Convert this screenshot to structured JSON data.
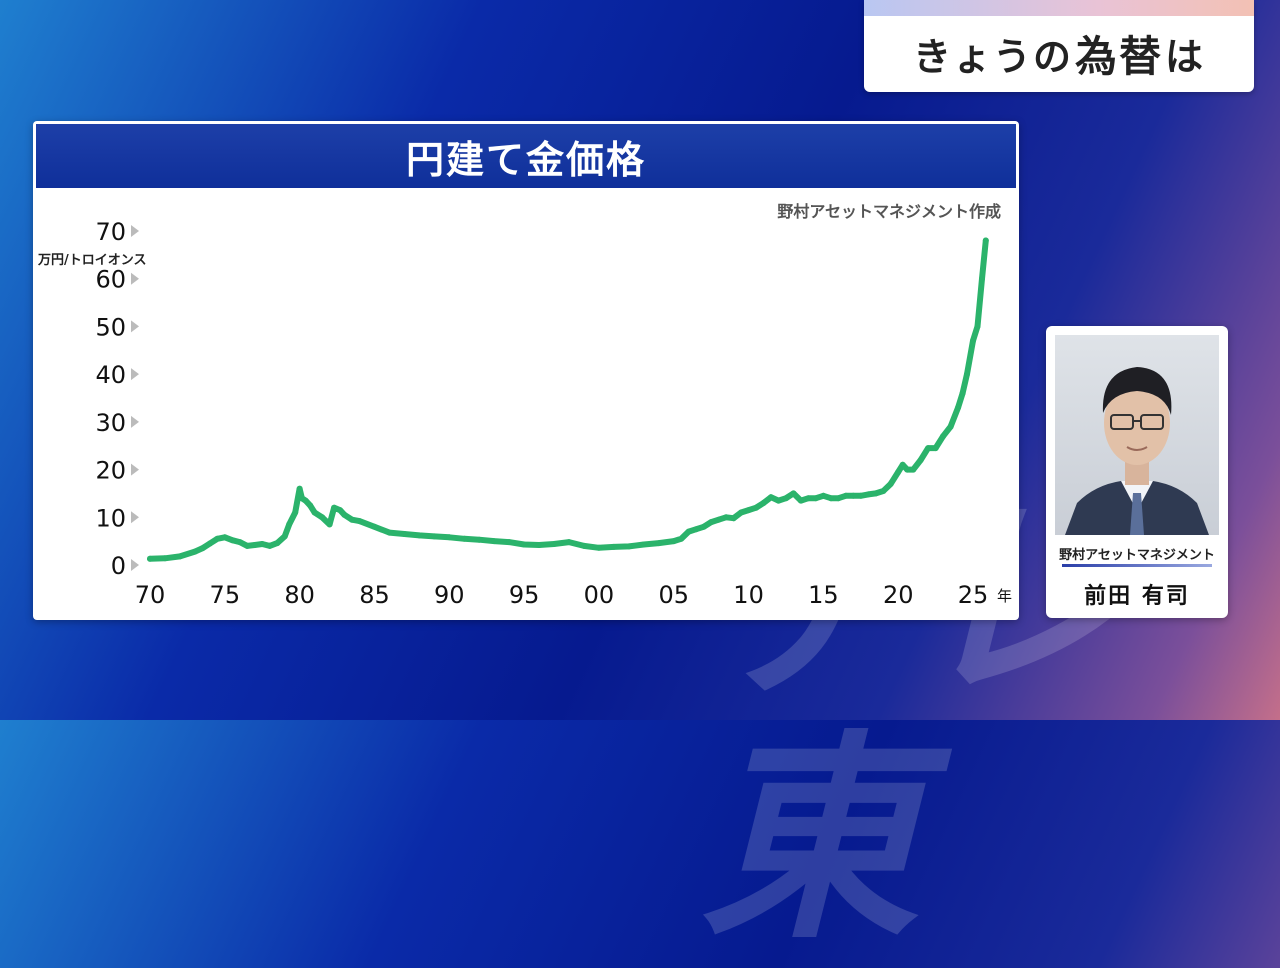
{
  "watermark": "テレ東",
  "topic": {
    "pre": "きょうの",
    "em": "為替",
    "post": "は"
  },
  "chart": {
    "title": "円建て金価格",
    "source": "野村アセットマネジメント作成",
    "unit": "万円/トロイオンス",
    "year_suffix": "年"
  },
  "guest": {
    "company": "野村アセットマネジメント",
    "name": "前田 有司"
  },
  "colors": {
    "line": "#2bb36b",
    "title_bg": "#0f2f9a",
    "arrow": "#bbbbbb"
  },
  "chart_data": {
    "type": "line",
    "title": "円建て金価格",
    "ylabel": "万円/トロイオンス",
    "xlabel": "",
    "x_ticks": [
      "70",
      "75",
      "80",
      "85",
      "90",
      "95",
      "00",
      "05",
      "10",
      "15",
      "20",
      "25"
    ],
    "y_ticks": [
      0,
      10,
      20,
      30,
      40,
      50,
      60,
      70
    ],
    "xlim": [
      1970,
      2026
    ],
    "ylim": [
      0,
      70
    ],
    "grid": false,
    "series": [
      {
        "x": [
          1970,
          1971,
          1972,
          1973,
          1973.5,
          1974,
          1974.5,
          1975,
          1975.5,
          1976,
          1976.5,
          1977,
          1977.5,
          1978,
          1978.5,
          1979,
          1979.3,
          1979.7,
          1980,
          1980.15,
          1980.4,
          1980.7,
          1981,
          1981.5,
          1982,
          1982.3,
          1982.7,
          1983,
          1983.5,
          1984,
          1985,
          1986,
          1987,
          1988,
          1989,
          1990,
          1991,
          1992,
          1993,
          1994,
          1995,
          1996,
          1997,
          1998,
          1999,
          2000,
          2001,
          2002,
          2003,
          2004,
          2005,
          2005.5,
          2006,
          2006.5,
          2007,
          2007.5,
          2008,
          2008.5,
          2009,
          2009.5,
          2010,
          2010.5,
          2011,
          2011.5,
          2012,
          2012.5,
          2013,
          2013.5,
          2014,
          2014.5,
          2015,
          2015.5,
          2016,
          2016.5,
          2017,
          2017.5,
          2018,
          2018.5,
          2019,
          2019.5,
          2020,
          2020.3,
          2020.6,
          2021,
          2021.5,
          2022,
          2022.5,
          2023,
          2023.5,
          2024,
          2024.3,
          2024.6,
          2025,
          2025.3,
          2025.6,
          2025.85
        ],
        "y": [
          1.3,
          1.4,
          1.8,
          2.8,
          3.5,
          4.5,
          5.5,
          5.8,
          5.2,
          4.8,
          4.0,
          4.2,
          4.4,
          4.0,
          4.6,
          6.0,
          8.5,
          11.0,
          16.0,
          14.0,
          13.5,
          12.5,
          11.0,
          10.0,
          8.5,
          12.0,
          11.5,
          10.5,
          9.5,
          9.2,
          8.0,
          6.8,
          6.5,
          6.2,
          6.0,
          5.8,
          5.5,
          5.3,
          5.0,
          4.8,
          4.3,
          4.2,
          4.4,
          4.8,
          4.0,
          3.6,
          3.8,
          3.9,
          4.3,
          4.6,
          5.0,
          5.5,
          7.0,
          7.5,
          8.0,
          9.0,
          9.5,
          10.0,
          9.8,
          11.0,
          11.5,
          12.0,
          13.0,
          14.2,
          13.5,
          14.0,
          15.0,
          13.5,
          14.0,
          14.0,
          14.5,
          14.0,
          14.0,
          14.5,
          14.5,
          14.5,
          14.8,
          15.0,
          15.5,
          17.0,
          19.5,
          21.0,
          20.0,
          20.0,
          22.0,
          24.5,
          24.5,
          27.0,
          29.0,
          33.0,
          36.0,
          40.0,
          47.0,
          50.0,
          60.0,
          68.0
        ]
      }
    ]
  }
}
